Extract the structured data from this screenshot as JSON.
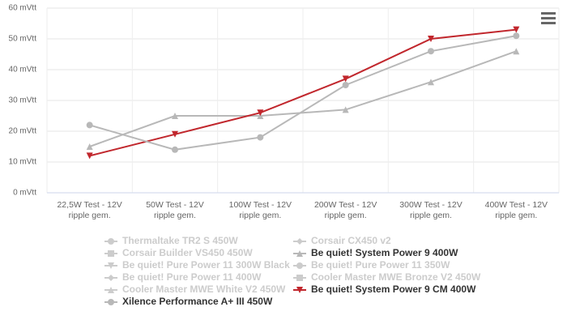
{
  "chart_data": {
    "type": "line",
    "categories": [
      "22,5W Test - 12V ripple gem.",
      "50W Test - 12V ripple gem.",
      "100W Test - 12V ripple gem.",
      "200W Test - 12V ripple gem.",
      "300W Test - 12V ripple gem.",
      "400W Test - 12V ripple gem."
    ],
    "ylim": [
      0,
      60
    ],
    "yticks": [
      {
        "value": 0,
        "label": "0 mVtt"
      },
      {
        "value": 10,
        "label": "10 mVtt"
      },
      {
        "value": 20,
        "label": "20 mVtt"
      },
      {
        "value": 30,
        "label": "30 mVtt"
      },
      {
        "value": 40,
        "label": "40 mVtt"
      },
      {
        "value": 50,
        "label": "50 mVtt"
      },
      {
        "value": 60,
        "label": "60 mVtt"
      }
    ],
    "grid": true,
    "series": [
      {
        "name": "Thermaltake TR2 S 450W",
        "symbol": "circle",
        "visible": false
      },
      {
        "name": "Corsair CX450 v2",
        "symbol": "diamond",
        "visible": false
      },
      {
        "name": "Corsair Builder VS450 450W",
        "symbol": "square",
        "visible": false
      },
      {
        "name": "Be quiet! System Power 9 400W",
        "symbol": "triangle",
        "visible": true,
        "color": "#b8b8b8",
        "values": [
          15,
          25,
          25,
          27,
          36,
          46
        ]
      },
      {
        "name": "Be quiet! Pure Power 11 300W Black",
        "symbol": "triangle-down",
        "visible": false
      },
      {
        "name": "Be quiet! Pure Power 11 350W",
        "symbol": "circle",
        "visible": false
      },
      {
        "name": "Be quiet! Pure Power 11 400W",
        "symbol": "diamond",
        "visible": false
      },
      {
        "name": "Cooler Master MWE Bronze V2 450W",
        "symbol": "square",
        "visible": false
      },
      {
        "name": "Cooler Master MWE White V2 450W",
        "symbol": "triangle",
        "visible": false
      },
      {
        "name": "Be quiet! System Power 9 CM 400W",
        "symbol": "triangle-down",
        "visible": true,
        "color": "#c1272d",
        "values": [
          12,
          19,
          26,
          37,
          50,
          53
        ]
      },
      {
        "name": "Xilence Performance A+ III 450W",
        "symbol": "circle",
        "visible": true,
        "color": "#b8b8b8",
        "values": [
          22,
          14,
          18,
          35,
          46,
          51
        ]
      }
    ]
  }
}
